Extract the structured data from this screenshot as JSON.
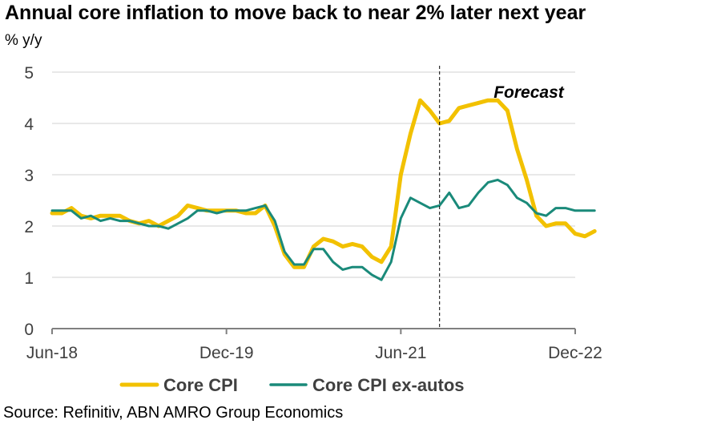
{
  "title": "Annual core inflation to move back to near 2% later next year",
  "unit_label": "% y/y",
  "source": "Source: Refinitiv, ABN AMRO Group Economics",
  "colors": {
    "core_cpi": "#f2c100",
    "core_cpi_ex_autos": "#1a8a7a",
    "grid": "#d9d9d9",
    "axis": "#808080"
  },
  "chart_data": {
    "type": "line",
    "title": "Annual core inflation to move back to near 2% later next year",
    "ylabel": "% y/y",
    "xlabel": "",
    "ylim": [
      0,
      5
    ],
    "yticks": [
      0,
      1,
      2,
      3,
      4,
      5
    ],
    "x_tick_labels": [
      "Jun-18",
      "Dec-19",
      "Jun-21",
      "Dec-22"
    ],
    "x_tick_months": [
      "2018-06",
      "2019-12",
      "2021-06",
      "2022-12"
    ],
    "x_range": [
      "2018-06",
      "2022-12"
    ],
    "grid": true,
    "legend_position": "bottom",
    "annotations": [
      {
        "text": "Forecast",
        "x": "2021-10",
        "style": "dashed vertical line"
      }
    ],
    "series": [
      {
        "name": "Core CPI",
        "start": "2018-06",
        "values": [
          2.25,
          2.25,
          2.35,
          2.2,
          2.15,
          2.2,
          2.2,
          2.2,
          2.1,
          2.05,
          2.1,
          2.0,
          2.1,
          2.2,
          2.4,
          2.35,
          2.3,
          2.3,
          2.3,
          2.3,
          2.25,
          2.25,
          2.4,
          2.0,
          1.45,
          1.2,
          1.2,
          1.6,
          1.75,
          1.7,
          1.6,
          1.65,
          1.6,
          1.4,
          1.3,
          1.6,
          3.0,
          3.8,
          4.45,
          4.25,
          4.0,
          4.05,
          4.3,
          4.35,
          4.4,
          4.45,
          4.45,
          4.25,
          3.5,
          2.9,
          2.2,
          2.0,
          2.05,
          2.05,
          1.85,
          1.8,
          1.9
        ]
      },
      {
        "name": "Core CPI ex-autos",
        "start": "2018-06",
        "values": [
          2.3,
          2.3,
          2.3,
          2.15,
          2.2,
          2.1,
          2.15,
          2.1,
          2.1,
          2.05,
          2.0,
          2.0,
          1.95,
          2.05,
          2.15,
          2.3,
          2.3,
          2.25,
          2.3,
          2.3,
          2.3,
          2.35,
          2.4,
          2.1,
          1.5,
          1.25,
          1.25,
          1.55,
          1.55,
          1.3,
          1.15,
          1.2,
          1.2,
          1.05,
          0.95,
          1.3,
          2.15,
          2.55,
          2.45,
          2.35,
          2.4,
          2.65,
          2.35,
          2.4,
          2.65,
          2.85,
          2.9,
          2.8,
          2.55,
          2.45,
          2.25,
          2.2,
          2.35,
          2.35,
          2.3,
          2.3,
          2.3
        ]
      }
    ]
  }
}
